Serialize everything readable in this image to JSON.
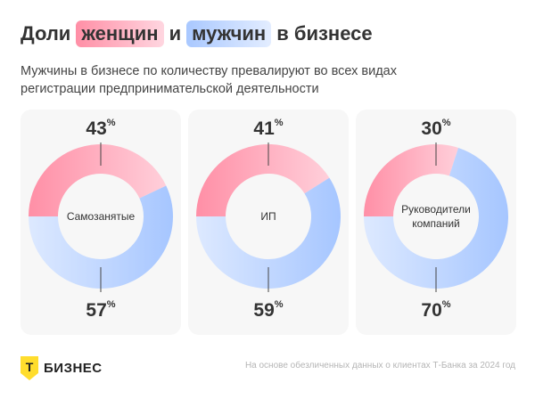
{
  "header": {
    "title_part1": "Доли",
    "title_women": "женщин",
    "title_and": "и",
    "title_men": "мужчин",
    "title_part2": "в бизнесе",
    "subtitle": "Мужчины в бизнесе по количеству превалируют во всех видах регистрации предпринимательской деятельности"
  },
  "colors": {
    "women": [
      "#ff8fa6",
      "#ffcfda"
    ],
    "men": [
      "#dde9ff",
      "#a6c6ff"
    ],
    "card": "#f7f7f7"
  },
  "chart_data": [
    {
      "type": "pie",
      "title": "Самозанятые",
      "categories": [
        "женщин",
        "мужчин"
      ],
      "values": [
        43,
        57
      ],
      "unit": "%"
    },
    {
      "type": "pie",
      "title": "ИП",
      "categories": [
        "женщин",
        "мужчин"
      ],
      "values": [
        41,
        59
      ],
      "unit": "%"
    },
    {
      "type": "pie",
      "title": "Руководители компаний",
      "categories": [
        "женщин",
        "мужчин"
      ],
      "values": [
        30,
        70
      ],
      "unit": "%"
    }
  ],
  "footer": {
    "logo_letter": "Т",
    "brand": "БИЗНЕС",
    "source": "На основе обезличенных данных о клиентах Т-Банка за 2024 год"
  }
}
